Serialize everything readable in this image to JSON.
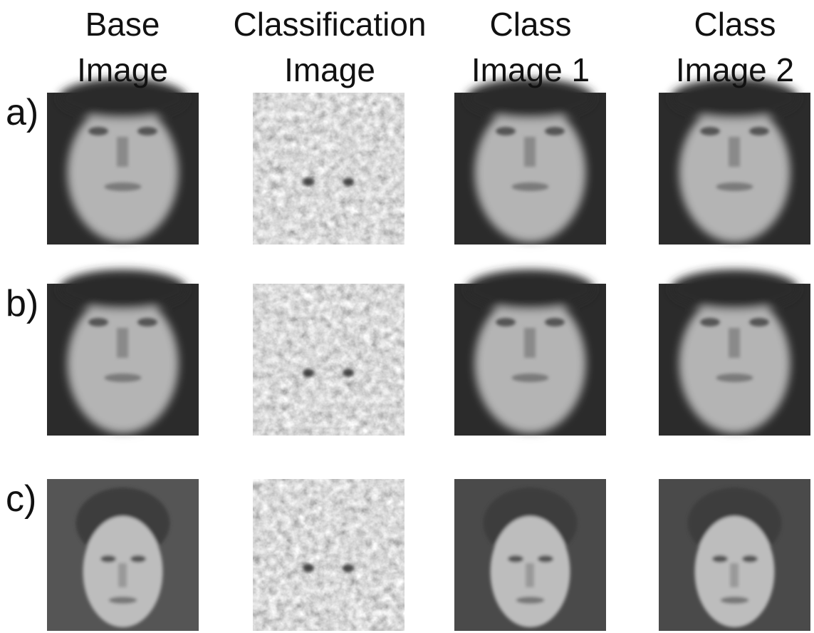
{
  "columns": [
    [
      "Base",
      "Image"
    ],
    [
      "Classification",
      "Image"
    ],
    [
      "Class",
      "Image 1"
    ],
    [
      "Class",
      "Image 2"
    ]
  ],
  "rows": [
    "a)",
    "b)",
    "c)"
  ]
}
